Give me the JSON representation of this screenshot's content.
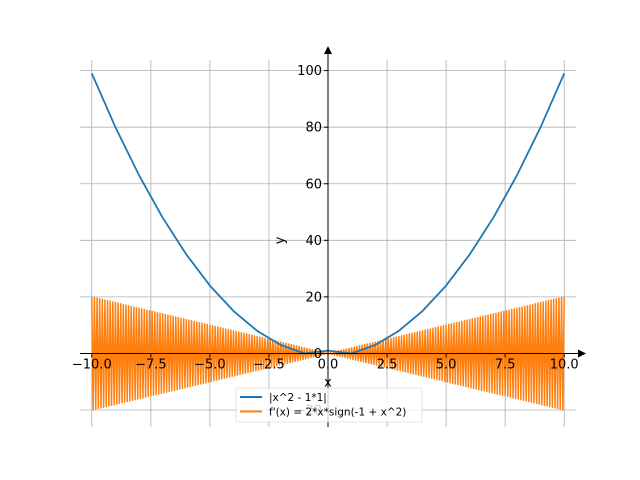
{
  "chart_data": {
    "type": "line",
    "xlabel": "x",
    "ylabel": "y",
    "xlim": [
      -10.5,
      10.5
    ],
    "ylim": [
      -26,
      108
    ],
    "xticks": [
      -10.0,
      -7.5,
      -5.0,
      -2.5,
      0.0,
      2.5,
      5.0,
      7.5,
      10.0
    ],
    "xtick_labels": [
      "−10.0",
      "−7.5",
      "−5.0",
      "−2.5",
      "0.0",
      "2.5",
      "5.0",
      "7.5",
      "10.0"
    ],
    "yticks": [
      -20,
      0,
      20,
      40,
      60,
      80,
      100
    ],
    "ytick_labels": [
      "−20",
      "0",
      "20",
      "40",
      "60",
      "80",
      "100"
    ],
    "grid": true,
    "legend_position": "bottom-center",
    "series": [
      {
        "name": "|x^2 - 1*1|",
        "color": "#1f77b4",
        "x": [
          -10,
          -9,
          -8,
          -7,
          -6,
          -5,
          -4,
          -3,
          -2,
          -1,
          0,
          1,
          2,
          3,
          4,
          5,
          6,
          7,
          8,
          9,
          10
        ],
        "y": [
          99,
          80,
          63,
          48,
          35,
          24,
          15,
          8,
          3,
          0,
          1,
          0,
          3,
          8,
          15,
          24,
          35,
          48,
          63,
          80,
          99
        ]
      },
      {
        "name": "f'(x) = 2*x*sign(-1 + x^2)",
        "color": "#ff7f0e",
        "envelope_x": [
          -10,
          -5,
          -2.5,
          0,
          2.5,
          5,
          10
        ],
        "envelope_y": [
          20,
          10,
          5,
          0,
          5,
          10,
          20
        ],
        "description": "rapidly alternating between +envelope and -envelope"
      }
    ]
  }
}
